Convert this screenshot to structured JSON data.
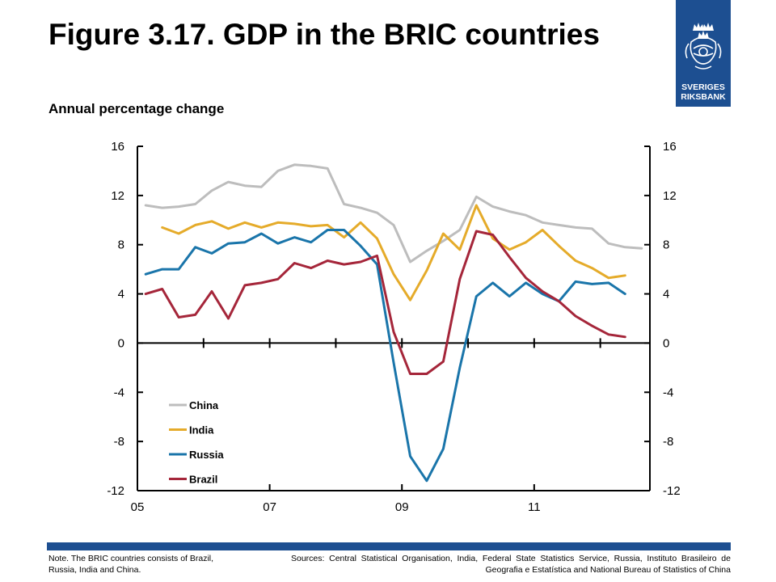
{
  "header": {
    "title": "Figure 3.17. GDP in the BRIC countries",
    "subtitle": "Annual percentage change"
  },
  "logo": {
    "line1": "SVERIGES",
    "line2": "RIKSBANK",
    "color": "#1d4f91"
  },
  "footer": {
    "note": "Note. The BRIC countries consists of Brazil, Russia, India and China.",
    "sources": "Sources: Central Statistical Organisation, India, Federal State Statistics Service, Russia, Instituto Brasileiro de Geografia e Estatística and National Bureau of Statistics of China"
  },
  "chart_data": {
    "type": "line",
    "title": "",
    "xlabel": "",
    "ylabel": "",
    "x_ticks": [
      "05",
      "07",
      "09",
      "11"
    ],
    "x_tick_values": [
      2005,
      2007,
      2009,
      2011
    ],
    "xlim": [
      2005,
      2012.75
    ],
    "ylim": [
      -12,
      16
    ],
    "y_ticks": [
      16,
      12,
      8,
      4,
      0,
      -4,
      -8,
      -12
    ],
    "grid": false,
    "legend_position": "bottom-left",
    "series": [
      {
        "name": "China",
        "color": "#bdbdbd",
        "x": [
          2005.125,
          2005.375,
          2005.625,
          2005.875,
          2006.125,
          2006.375,
          2006.625,
          2006.875,
          2007.125,
          2007.375,
          2007.625,
          2007.875,
          2008.125,
          2008.375,
          2008.625,
          2008.875,
          2009.125,
          2009.375,
          2009.625,
          2009.875,
          2010.125,
          2010.375,
          2010.625,
          2010.875,
          2011.125,
          2011.375,
          2011.625,
          2011.875,
          2012.125,
          2012.375,
          2012.625
        ],
        "y": [
          11.2,
          11.0,
          11.1,
          11.3,
          12.4,
          13.1,
          12.8,
          12.7,
          14.0,
          14.5,
          14.4,
          14.2,
          11.3,
          11.0,
          10.6,
          9.6,
          6.6,
          7.5,
          8.3,
          9.2,
          11.9,
          11.1,
          10.7,
          10.4,
          9.8,
          9.6,
          9.4,
          9.3,
          8.1,
          7.8,
          7.7
        ]
      },
      {
        "name": "India",
        "color": "#e5ab2a",
        "x": [
          2005.375,
          2005.625,
          2005.875,
          2006.125,
          2006.375,
          2006.625,
          2006.875,
          2007.125,
          2007.375,
          2007.625,
          2007.875,
          2008.125,
          2008.375,
          2008.625,
          2008.875,
          2009.125,
          2009.375,
          2009.625,
          2009.875,
          2010.125,
          2010.375,
          2010.625,
          2010.875,
          2011.125,
          2011.375,
          2011.625,
          2011.875,
          2012.125,
          2012.375
        ],
        "y": [
          9.4,
          8.9,
          9.6,
          9.9,
          9.3,
          9.8,
          9.4,
          9.8,
          9.7,
          9.5,
          9.6,
          8.6,
          9.8,
          8.5,
          5.6,
          3.5,
          5.9,
          8.9,
          7.6,
          11.2,
          8.5,
          7.6,
          8.2,
          9.2,
          7.9,
          6.7,
          6.1,
          5.3,
          5.5
        ]
      },
      {
        "name": "Russia",
        "color": "#1a75aa",
        "x": [
          2005.125,
          2005.375,
          2005.625,
          2005.875,
          2006.125,
          2006.375,
          2006.625,
          2006.875,
          2007.125,
          2007.375,
          2007.625,
          2007.875,
          2008.125,
          2008.375,
          2008.625,
          2008.875,
          2009.125,
          2009.375,
          2009.625,
          2009.875,
          2010.125,
          2010.375,
          2010.625,
          2010.875,
          2011.125,
          2011.375,
          2011.625,
          2011.875,
          2012.125,
          2012.375
        ],
        "y": [
          5.6,
          6.0,
          6.0,
          7.8,
          7.3,
          8.1,
          8.2,
          8.9,
          8.1,
          8.6,
          8.2,
          9.2,
          9.2,
          7.9,
          6.4,
          -1.6,
          -9.2,
          -11.2,
          -8.6,
          -2.0,
          3.8,
          4.9,
          3.8,
          4.9,
          4.0,
          3.4,
          5.0,
          4.8,
          4.9,
          4.0
        ]
      },
      {
        "name": "Brazil",
        "color": "#a5263a",
        "x": [
          2005.125,
          2005.375,
          2005.625,
          2005.875,
          2006.125,
          2006.375,
          2006.625,
          2006.875,
          2007.125,
          2007.375,
          2007.625,
          2007.875,
          2008.125,
          2008.375,
          2008.625,
          2008.875,
          2009.125,
          2009.375,
          2009.625,
          2009.875,
          2010.125,
          2010.375,
          2010.625,
          2010.875,
          2011.125,
          2011.375,
          2011.625,
          2011.875,
          2012.125,
          2012.375
        ],
        "y": [
          4.0,
          4.4,
          2.1,
          2.3,
          4.2,
          2.0,
          4.7,
          4.9,
          5.2,
          6.5,
          6.1,
          6.7,
          6.4,
          6.6,
          7.1,
          0.9,
          -2.5,
          -2.5,
          -1.5,
          5.2,
          9.1,
          8.8,
          7.0,
          5.3,
          4.2,
          3.4,
          2.2,
          1.4,
          0.7,
          0.5
        ]
      }
    ]
  }
}
